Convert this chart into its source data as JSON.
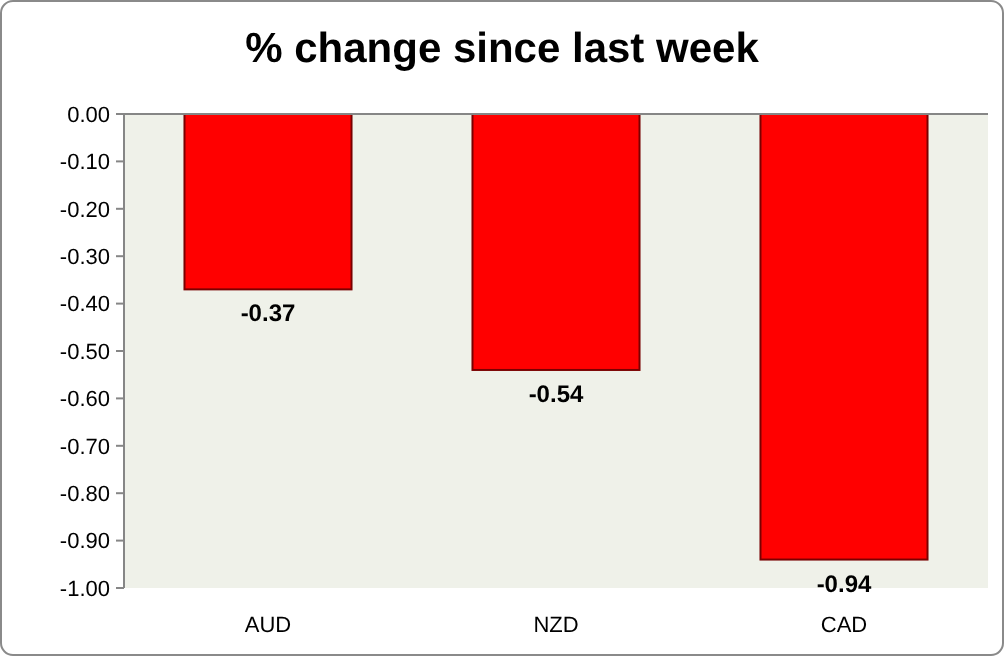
{
  "chart_data": {
    "type": "bar",
    "title": "% change since last week",
    "categories": [
      "AUD",
      "NZD",
      "CAD"
    ],
    "values": [
      -0.37,
      -0.54,
      -0.94
    ],
    "color": "#ff0000",
    "value_labels": [
      "-0.37",
      "-0.54",
      "-0.94"
    ],
    "ylim": [
      -1,
      0
    ],
    "yticks": [
      {
        "value": -1,
        "label": "-1.00"
      },
      {
        "value": -0.9,
        "label": "-0.90"
      },
      {
        "value": -0.8,
        "label": "-0.80"
      },
      {
        "value": -0.7,
        "label": "-0.70"
      },
      {
        "value": -0.6,
        "label": "-0.60"
      },
      {
        "value": -0.5,
        "label": "-0.50"
      },
      {
        "value": -0.4,
        "label": "-0.40"
      },
      {
        "value": -0.3,
        "label": "-0.30"
      },
      {
        "value": -0.2,
        "label": "-0.20"
      },
      {
        "value": -0.1,
        "label": "-0.10"
      },
      {
        "value": 0,
        "label": "0.00"
      }
    ],
    "grid": false
  }
}
